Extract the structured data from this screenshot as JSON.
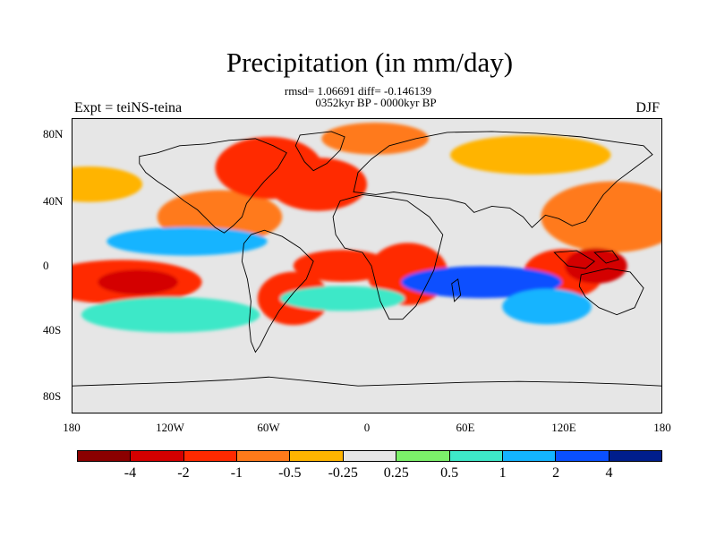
{
  "title": "Precipitation (in mm/day)",
  "stats_line": "rmsd= 1.06691 diff= -0.146139",
  "period_line": "0352kyr BP - 0000kyr BP",
  "left_label": "Expt = teiNS-teina",
  "right_label": "DJF",
  "y_ticks": [
    "80N",
    "40N",
    "0",
    "40S",
    "80S"
  ],
  "x_ticks": [
    "180",
    "120W",
    "60W",
    "0",
    "60E",
    "120E",
    "180"
  ],
  "colorbar": {
    "colors": [
      "#8b0000",
      "#d40000",
      "#ff2a00",
      "#ff7a1a",
      "#ffb400",
      "#e6e6e6",
      "#7cf06a",
      "#3ee8c8",
      "#14b4ff",
      "#0a50ff",
      "#001e8c"
    ],
    "labels": [
      "-4",
      "-2",
      "-1",
      "-0.5",
      "-0.25",
      "0.25",
      "0.5",
      "1",
      "2",
      "4"
    ]
  },
  "chart_data": {
    "type": "heatmap",
    "title": "Precipitation (in mm/day)",
    "subtitle": "0352kyr BP - 0000kyr BP",
    "x_range": [
      -180,
      180
    ],
    "y_range": [
      -90,
      90
    ],
    "levels": [
      -4,
      -2,
      -1,
      -0.5,
      -0.25,
      0.25,
      0.5,
      1,
      2,
      4
    ],
    "regions": [
      {
        "lon": -90,
        "lat": 30,
        "value": -1
      },
      {
        "lon": -60,
        "lat": 60,
        "value": -2
      },
      {
        "lon": -30,
        "lat": 50,
        "value": -2
      },
      {
        "lon": 5,
        "lat": 78,
        "value": -1
      },
      {
        "lon": 100,
        "lat": 68,
        "value": -0.5
      },
      {
        "lon": -170,
        "lat": 50,
        "value": -0.5
      },
      {
        "lon": 150,
        "lat": 30,
        "value": -1
      },
      {
        "lon": -150,
        "lat": -10,
        "value": -2
      },
      {
        "lon": -140,
        "lat": -10,
        "value": -4
      },
      {
        "lon": -45,
        "lat": -20,
        "value": -2
      },
      {
        "lon": -15,
        "lat": 0,
        "value": -2
      },
      {
        "lon": 25,
        "lat": -5,
        "value": -2
      },
      {
        "lon": 120,
        "lat": -5,
        "value": -2
      },
      {
        "lon": 140,
        "lat": 0,
        "value": -4
      },
      {
        "lon": -110,
        "lat": 15,
        "value": 1
      },
      {
        "lon": -120,
        "lat": -30,
        "value": 0.5
      },
      {
        "lon": -15,
        "lat": -20,
        "value": 0.5
      },
      {
        "lon": 70,
        "lat": -10,
        "value": 2
      },
      {
        "lon": 110,
        "lat": -25,
        "value": 1
      },
      {
        "lon": -10,
        "lat": -55,
        "value": -0.25
      },
      {
        "lon": 0,
        "lat": -75,
        "value": -0.25
      }
    ]
  }
}
